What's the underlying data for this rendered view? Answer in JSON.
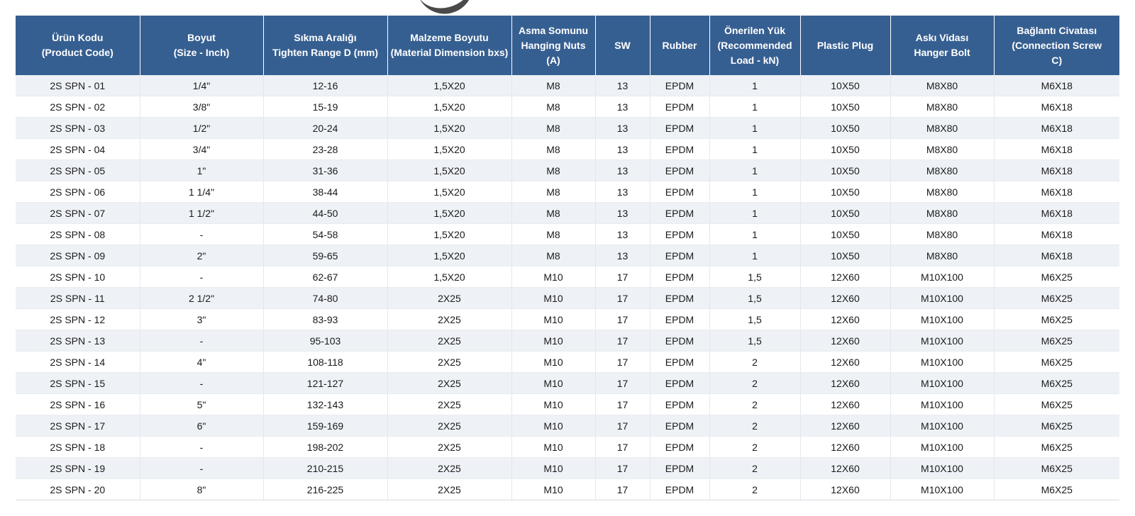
{
  "table": {
    "headers": [
      "Ürün Kodu\n(Product Code)",
      "Boyut\n(Size - Inch)",
      "Sıkma Aralığı\nTighten Range D (mm)",
      "Malzeme Boyutu\n(Material Dimension bxs)",
      "Asma Somunu\nHanging Nuts\n(A)",
      "SW",
      "Rubber",
      "Önerilen Yük\n(Recommended\nLoad - kN)",
      "Plastic Plug",
      "Askı  Vidası\nHanger Bolt",
      "Bağlantı Civatası\n(Connection Screw\nC)"
    ],
    "rows": [
      [
        "2S SPN - 01",
        "1/4\"",
        "12-16",
        "1,5X20",
        "M8",
        "13",
        "EPDM",
        "1",
        "10X50",
        "M8X80",
        "M6X18"
      ],
      [
        "2S SPN - 02",
        "3/8\"",
        "15-19",
        "1,5X20",
        "M8",
        "13",
        "EPDM",
        "1",
        "10X50",
        "M8X80",
        "M6X18"
      ],
      [
        "2S SPN - 03",
        "1/2\"",
        "20-24",
        "1,5X20",
        "M8",
        "13",
        "EPDM",
        "1",
        "10X50",
        "M8X80",
        "M6X18"
      ],
      [
        "2S SPN - 04",
        "3/4\"",
        "23-28",
        "1,5X20",
        "M8",
        "13",
        "EPDM",
        "1",
        "10X50",
        "M8X80",
        "M6X18"
      ],
      [
        "2S SPN - 05",
        "1\"",
        "31-36",
        "1,5X20",
        "M8",
        "13",
        "EPDM",
        "1",
        "10X50",
        "M8X80",
        "M6X18"
      ],
      [
        "2S SPN - 06",
        "1 1/4\"",
        "38-44",
        "1,5X20",
        "M8",
        "13",
        "EPDM",
        "1",
        "10X50",
        "M8X80",
        "M6X18"
      ],
      [
        "2S SPN - 07",
        "1 1/2\"",
        "44-50",
        "1,5X20",
        "M8",
        "13",
        "EPDM",
        "1",
        "10X50",
        "M8X80",
        "M6X18"
      ],
      [
        "2S SPN - 08",
        "-",
        "54-58",
        "1,5X20",
        "M8",
        "13",
        "EPDM",
        "1",
        "10X50",
        "M8X80",
        "M6X18"
      ],
      [
        "2S SPN - 09",
        "2\"",
        "59-65",
        "1,5X20",
        "M8",
        "13",
        "EPDM",
        "1",
        "10X50",
        "M8X80",
        "M6X18"
      ],
      [
        "2S SPN - 10",
        "-",
        "62-67",
        "1,5X20",
        "M10",
        "17",
        "EPDM",
        "1,5",
        "12X60",
        "M10X100",
        "M6X25"
      ],
      [
        "2S SPN - 11",
        "2 1/2\"",
        "74-80",
        "2X25",
        "M10",
        "17",
        "EPDM",
        "1,5",
        "12X60",
        "M10X100",
        "M6X25"
      ],
      [
        "2S SPN - 12",
        "3\"",
        "83-93",
        "2X25",
        "M10",
        "17",
        "EPDM",
        "1,5",
        "12X60",
        "M10X100",
        "M6X25"
      ],
      [
        "2S SPN - 13",
        "-",
        "95-103",
        "2X25",
        "M10",
        "17",
        "EPDM",
        "1,5",
        "12X60",
        "M10X100",
        "M6X25"
      ],
      [
        "2S SPN - 14",
        "4\"",
        "108-118",
        "2X25",
        "M10",
        "17",
        "EPDM",
        "2",
        "12X60",
        "M10X100",
        "M6X25"
      ],
      [
        "2S SPN - 15",
        "-",
        "121-127",
        "2X25",
        "M10",
        "17",
        "EPDM",
        "2",
        "12X60",
        "M10X100",
        "M6X25"
      ],
      [
        "2S SPN - 16",
        "5\"",
        "132-143",
        "2X25",
        "M10",
        "17",
        "EPDM",
        "2",
        "12X60",
        "M10X100",
        "M6X25"
      ],
      [
        "2S SPN - 17",
        "6\"",
        "159-169",
        "2X25",
        "M10",
        "17",
        "EPDM",
        "2",
        "12X60",
        "M10X100",
        "M6X25"
      ],
      [
        "2S SPN - 18",
        "-",
        "198-202",
        "2X25",
        "M10",
        "17",
        "EPDM",
        "2",
        "12X60",
        "M10X100",
        "M6X25"
      ],
      [
        "2S SPN - 19",
        "-",
        "210-215",
        "2X25",
        "M10",
        "17",
        "EPDM",
        "2",
        "12X60",
        "M10X100",
        "M6X25"
      ],
      [
        "2S SPN - 20",
        "8\"",
        "216-225",
        "2X25",
        "M10",
        "17",
        "EPDM",
        "2",
        "12X60",
        "M10X100",
        "M6X25"
      ]
    ]
  },
  "colors": {
    "header_bg": "#365f91",
    "header_text": "#ffffff",
    "row_stripe": "#eef2f7"
  }
}
